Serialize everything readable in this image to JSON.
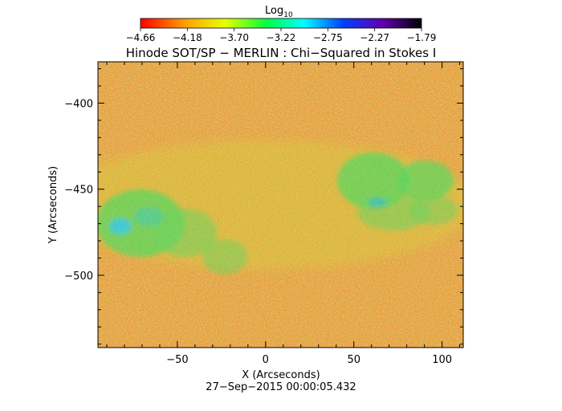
{
  "chart_data": {
    "type": "heatmap",
    "title": "Hinode SOT/SP − MERLIN : Chi−Squared in Stokes I",
    "colorbar": {
      "label_base": "Log",
      "label_sub": "10",
      "ticks": [
        "−4.66",
        "−4.18",
        "−3.70",
        "−3.22",
        "−2.75",
        "−2.27",
        "−1.79"
      ],
      "range": [
        -4.66,
        -1.79
      ],
      "colormap": "rainbow (red → yellow → green → cyan → blue → violet → black)"
    },
    "xlabel": "X (Arcseconds)",
    "ylabel": "Y (Arcseconds)",
    "x_ticks": [
      -50,
      0,
      50,
      100
    ],
    "y_ticks": [
      -400,
      -450,
      -500
    ],
    "x_tick_labels": [
      "−50",
      "0",
      "50",
      "100"
    ],
    "y_tick_labels": [
      "−400",
      "−450",
      "−500"
    ],
    "xlim": [
      -95,
      112
    ],
    "ylim": [
      -542,
      -376
    ],
    "timestamp": "27−Sep−2015 00:00:05.432",
    "colors": {
      "low_red": "#e8461c",
      "orange": "#f2a030",
      "yellow": "#dcdc2a",
      "green": "#5ad24e",
      "cyan": "#3cc8d8"
    }
  }
}
